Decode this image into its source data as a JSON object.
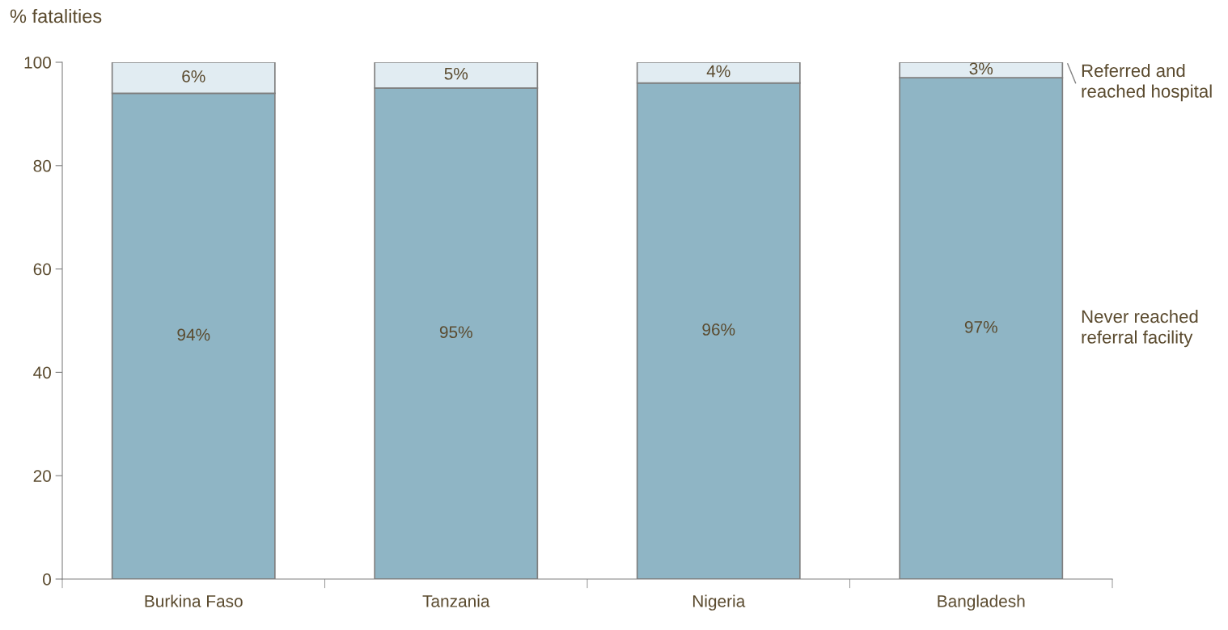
{
  "chart_data": {
    "type": "bar",
    "stacked": true,
    "ylabel": "% fatalities",
    "categories": [
      "Burkina Faso",
      "Tanzania",
      "Nigeria",
      "Bangladesh"
    ],
    "series": [
      {
        "name": "Never reached\nreferral facility",
        "color": "#8fb5c5",
        "values": [
          94,
          95,
          96,
          97
        ],
        "value_labels": [
          "94%",
          "95%",
          "96%",
          "97%"
        ]
      },
      {
        "name": "Referred and\nreached hospital",
        "color": "#e1ecf2",
        "values": [
          6,
          5,
          4,
          3
        ],
        "value_labels": [
          "6%",
          "5%",
          "4%",
          "3%"
        ]
      }
    ],
    "ylim": [
      0,
      100
    ],
    "yticks": [
      0,
      20,
      40,
      60,
      80,
      100
    ],
    "grid": false,
    "legend": "right"
  }
}
